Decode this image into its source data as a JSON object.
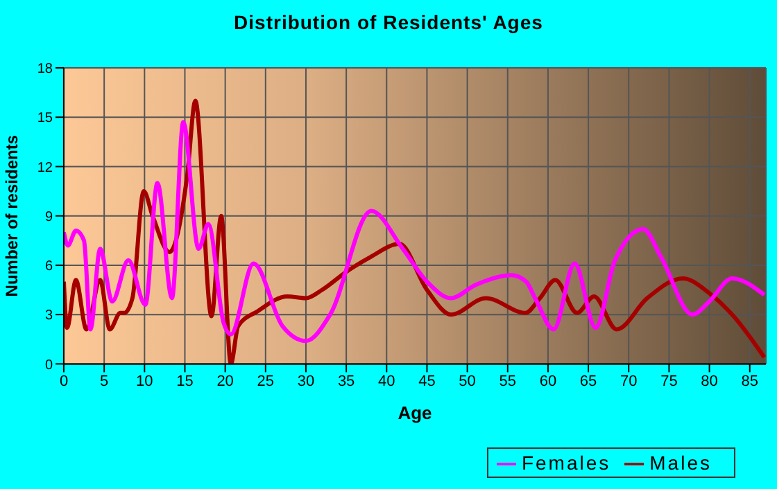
{
  "chart_data": {
    "type": "line",
    "title": "Distribution of Residents' Ages",
    "xlabel": "Age",
    "ylabel": "Number of residents",
    "xlim": [
      0,
      87
    ],
    "xticks": [
      0,
      5,
      10,
      15,
      20,
      25,
      30,
      35,
      40,
      45,
      50,
      55,
      60,
      65,
      70,
      75,
      80,
      85
    ],
    "ylim": [
      0,
      18
    ],
    "yticks": [
      0,
      3,
      6,
      9,
      12,
      15,
      18
    ],
    "grid": true,
    "legend": "bottom right",
    "marker": "none",
    "line_style": "solid",
    "series": [
      {
        "name": "Males",
        "color": "#a50000",
        "x": [
          0,
          0.4,
          1.5,
          2.8,
          4.5,
          5.7,
          7,
          7.5,
          8.5,
          9.9,
          11,
          13.1,
          15.3,
          16.3,
          18.3,
          19.5,
          20.7,
          21.6,
          24,
          27.7,
          30,
          32,
          35,
          38,
          41.6,
          45,
          48,
          52.3,
          57.2,
          59,
          60.9,
          63.6,
          65.7,
          68.5,
          72.3,
          76.7,
          80,
          83,
          86.8
        ],
        "values": [
          5,
          2.2,
          5.1,
          2.1,
          5.1,
          2.1,
          3.1,
          3.1,
          4,
          10.5,
          9,
          6.8,
          11.5,
          16,
          2.9,
          9,
          0,
          2.3,
          3.2,
          4.1,
          4,
          4.5,
          5.6,
          6.5,
          7.3,
          4.5,
          3,
          4,
          3.1,
          4,
          5.1,
          3.1,
          4.1,
          2.1,
          4,
          5.2,
          4.3,
          2.9,
          0.4
        ]
      },
      {
        "name": "Females",
        "color": "#ff00ff",
        "x": [
          0,
          0.5,
          1.5,
          2.5,
          3.3,
          4.5,
          6,
          8,
          10.1,
          11.6,
          13.4,
          14.8,
          16.7,
          17.9,
          19.8,
          20.7,
          23.5,
          27.1,
          30,
          33,
          38.1,
          42,
          45,
          48,
          51,
          55.5,
          57.3,
          58.4,
          60.7,
          63.3,
          65.9,
          68.3,
          71.8,
          74,
          77.9,
          80,
          82.8,
          86.8
        ],
        "values": [
          8,
          7.2,
          8.1,
          7.5,
          2.1,
          7,
          3.8,
          6.3,
          3.6,
          11,
          4,
          14.7,
          7,
          8.5,
          2.5,
          1.8,
          6.1,
          2.3,
          1.4,
          3,
          9.3,
          7,
          5,
          4,
          4.8,
          5.4,
          5,
          4,
          2.1,
          6.1,
          2.2,
          6.3,
          8.2,
          6.5,
          3,
          3.8,
          5.2,
          4.2
        ]
      }
    ]
  }
}
